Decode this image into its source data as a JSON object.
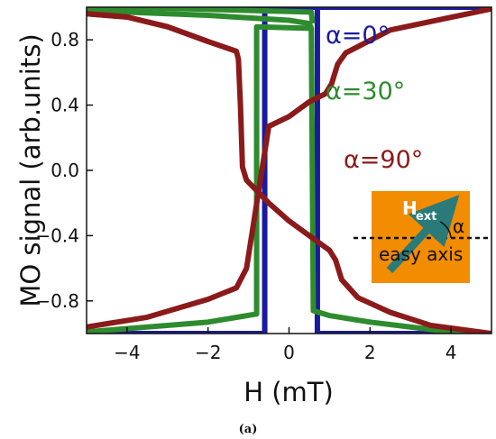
{
  "chart_data": {
    "type": "line",
    "xlabel": "H (mT)",
    "ylabel": "MO signal (arb.units)",
    "xlim": [
      -5,
      5
    ],
    "ylim": [
      -1.0,
      1.0
    ],
    "xticks": [
      -4,
      -2,
      0,
      2,
      4
    ],
    "xtick_labels": [
      "−4",
      "−2",
      "0",
      "2",
      "4"
    ],
    "yticks": [
      0.8,
      0.4,
      0.0,
      -0.4,
      -0.8
    ],
    "ytick_labels": [
      "0.8",
      "0.4",
      "0.0",
      "−0.4",
      "−0.8"
    ],
    "series": [
      {
        "name": "α=0°",
        "color": "#1a1aa0",
        "descending": [
          [
            -5,
            1.0
          ],
          [
            0.7,
            1.0
          ],
          [
            0.7,
            -1.0
          ],
          [
            5,
            -1.0
          ]
        ],
        "ascending": [
          [
            -5,
            -1.0
          ],
          [
            -0.6,
            -1.0
          ],
          [
            -0.6,
            1.0
          ],
          [
            5,
            1.0
          ]
        ]
      },
      {
        "name": "α=30°",
        "color": "#2e8b2e",
        "descending": [
          [
            -5,
            0.98
          ],
          [
            -2,
            0.95
          ],
          [
            0,
            0.92
          ],
          [
            0.5,
            0.9
          ],
          [
            0.55,
            0.87
          ],
          [
            0.6,
            -0.86
          ],
          [
            1.0,
            -0.89
          ],
          [
            2.0,
            -0.93
          ],
          [
            3.0,
            -0.96
          ],
          [
            4.0,
            -0.99
          ],
          [
            5,
            -1.0
          ]
        ],
        "ascending": [
          [
            -5,
            1.0
          ],
          [
            -4,
            1.0
          ],
          [
            0.55,
            0.97
          ],
          [
            0.58,
            0.9
          ]
        ],
        "ascending_low": [
          [
            -5,
            -0.99
          ],
          [
            -4,
            -0.97
          ],
          [
            -2,
            -0.93
          ],
          [
            -0.8,
            -0.88
          ],
          [
            -0.8,
            0.88
          ],
          [
            0.6,
            0.87
          ]
        ]
      },
      {
        "name": "α=90°",
        "color": "#8b1a1a",
        "descending": [
          [
            -5,
            0.96
          ],
          [
            -4,
            0.94
          ],
          [
            -3,
            0.88
          ],
          [
            -2,
            0.79
          ],
          [
            -1.3,
            0.73
          ],
          [
            -1.25,
            0.68
          ],
          [
            -1.2,
            0.4
          ],
          [
            -1.15,
            0.02
          ],
          [
            -1.05,
            -0.06
          ],
          [
            -0.5,
            -0.2
          ],
          [
            0,
            -0.31
          ],
          [
            0.5,
            -0.4
          ],
          [
            1.0,
            -0.49
          ],
          [
            1.15,
            -0.55
          ],
          [
            1.3,
            -0.67
          ],
          [
            1.7,
            -0.78
          ],
          [
            2.5,
            -0.87
          ],
          [
            3.5,
            -0.95
          ],
          [
            5,
            -1.0
          ]
        ],
        "ascending": [
          [
            -5,
            0.96
          ],
          [
            -4,
            0.94
          ],
          [
            -3,
            0.88
          ],
          [
            -2,
            0.79
          ]
        ],
        "ascending_low": [
          [
            -5,
            -0.96
          ],
          [
            -3.5,
            -0.9
          ],
          [
            -2,
            -0.79
          ],
          [
            -1.3,
            -0.72
          ],
          [
            -1.05,
            -0.6
          ],
          [
            -0.5,
            0.27
          ],
          [
            0,
            0.33
          ],
          [
            0.5,
            0.42
          ],
          [
            0.9,
            0.47
          ],
          [
            1.05,
            0.53
          ],
          [
            1.2,
            0.65
          ],
          [
            1.4,
            0.72
          ],
          [
            2.5,
            0.86
          ],
          [
            5,
            0.99
          ]
        ]
      }
    ],
    "legend": "labels next to curves",
    "inset": {
      "field_label": "H",
      "field_subscript": "ext",
      "angle_label": "α",
      "axis_label": "easy axis",
      "background": "#f28c00",
      "arrow_color": "#2a7a7a"
    },
    "panel_label": "(a)"
  }
}
